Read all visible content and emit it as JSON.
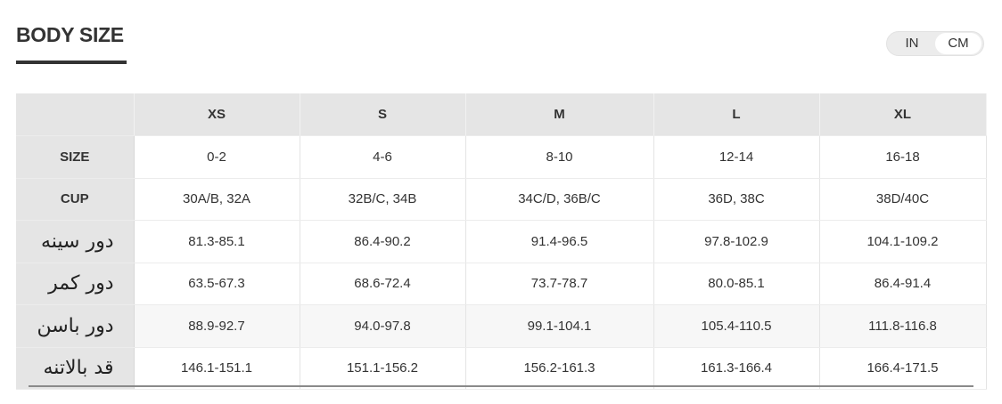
{
  "header": {
    "title": "BODY SIZE"
  },
  "unit_toggle": {
    "options": [
      "IN",
      "CM"
    ]
  },
  "table": {
    "columns": [
      "XS",
      "S",
      "M",
      "L",
      "XL"
    ],
    "rows": [
      [
        "SIZE",
        "0-2",
        "4-6",
        "8-10",
        "12-14",
        "16-18"
      ],
      [
        "CUP",
        "30A/B, 32A",
        "32B/C, 34B",
        "34C/D, 36B/C",
        "36D, 38C",
        "38D/40C"
      ],
      [
        "دور سینه",
        "81.3-85.1",
        "86.4-90.2",
        "91.4-96.5",
        "97.8-102.9",
        "104.1-109.2"
      ],
      [
        "دور کمر",
        "63.5-67.3",
        "68.6-72.4",
        "73.7-78.7",
        "80.0-85.1",
        "86.4-91.4"
      ],
      [
        "دور باسن",
        "88.9-92.7",
        "94.0-97.8",
        "99.1-104.1",
        "105.4-110.5",
        "111.8-116.8"
      ],
      [
        "قد بالاتنه",
        "146.1-151.1",
        "151.1-156.2",
        "156.2-161.3",
        "161.3-166.4",
        "166.4-171.5"
      ]
    ]
  }
}
